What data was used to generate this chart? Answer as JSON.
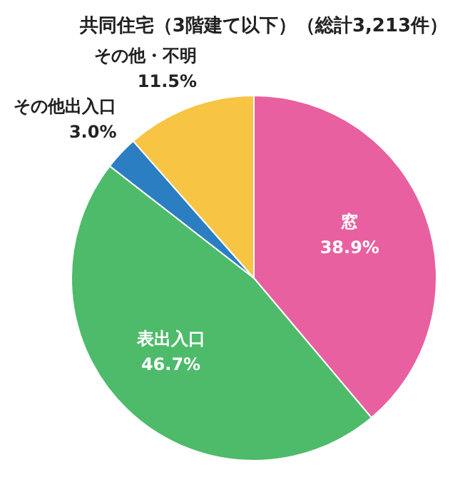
{
  "chart_data": {
    "type": "pie",
    "title": "共同住宅（3階建て以下）（総計3,213件）",
    "categories": [
      "窓",
      "表出入口",
      "その他出入口",
      "その他・不明"
    ],
    "values": [
      38.9,
      46.7,
      3.0,
      11.5
    ],
    "colors": [
      "#e8609f",
      "#4dbb6a",
      "#2b7ec1",
      "#f7c444"
    ],
    "value_labels": [
      "38.9%",
      "46.7%",
      "3.0%",
      "11.5%"
    ]
  }
}
